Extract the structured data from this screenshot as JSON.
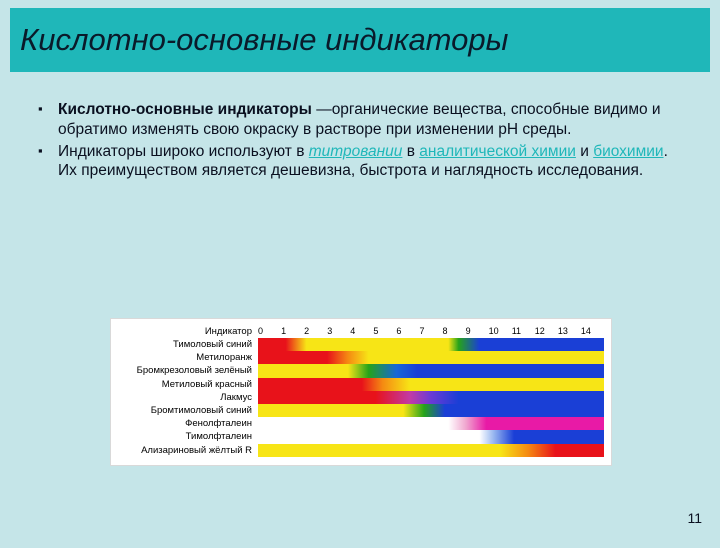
{
  "title": "Кислотно-основные индикаторы",
  "bullets": [
    {
      "bold_lead": "Кислотно-основные индикаторы ",
      "rest": "—органические вещества, способные видимо и обратимо изменять свою окраску в растворе при изменении pH среды."
    }
  ],
  "bullet2": {
    "t1": "Индикаторы широко используют в ",
    "link1": "титровании",
    "t2": " в ",
    "link2": "аналитической химии",
    "t3": " и ",
    "link3": "биохимии",
    "t4": ". Их преимуществом является дешевизна, быстрота и наглядность исследования."
  },
  "chart": {
    "header_label": "Индикатор",
    "axis": [
      "0",
      "1",
      "2",
      "3",
      "4",
      "5",
      "6",
      "7",
      "8",
      "9",
      "10",
      "11",
      "12",
      "13",
      "14"
    ],
    "rows": [
      {
        "label": "Тимоловый синий",
        "gradient": "linear-gradient(90deg,#e8121a 0%,#e8121a 8%,#f7e516 14%,#f7e516 55%,#26a31a 58%,#1a3fd6 64%,#1a3fd6 100%)"
      },
      {
        "label": "Метилоранж",
        "gradient": "linear-gradient(90deg,#e8121a 0%,#e8121a 20%,#f58a12 26%,#f7e516 32%,#f7e516 100%)"
      },
      {
        "label": "Бромкрезоловый зелёный",
        "gradient": "linear-gradient(90deg,#f7e516 0%,#f7e516 26%,#26a31a 32%,#1867d6 40%,#1a3fd6 46%,#1a3fd6 100%)"
      },
      {
        "label": "Метиловый красный",
        "gradient": "linear-gradient(90deg,#e8121a 0%,#e8121a 30%,#f58a12 36%,#f7e516 44%,#f7e516 100%)"
      },
      {
        "label": "Лакмус",
        "gradient": "linear-gradient(90deg,#e8121a 0%,#e8121a 34%,#c23aa6 44%,#6a3ad6 50%,#1a3fd6 58%,#1a3fd6 100%)"
      },
      {
        "label": "Бромтимоловый синий",
        "gradient": "linear-gradient(90deg,#f7e516 0%,#f7e516 42%,#26a31a 48%,#1a3fd6 54%,#1a3fd6 100%)"
      },
      {
        "label": "Фенолфталеин",
        "gradient": "linear-gradient(90deg,#ffffff 0%,#ffffff 55%,#f0a8d0 60%,#e81aa6 66%,#e81aa6 100%)"
      },
      {
        "label": "Тимолфталеин",
        "gradient": "linear-gradient(90deg,#ffffff 0%,#ffffff 64%,#9ab8f0 68%,#1a3fd6 74%,#1a3fd6 100%)"
      },
      {
        "label": "Ализариновый жёлтый R",
        "gradient": "linear-gradient(90deg,#f7e516 0%,#f7e516 70%,#f58a12 78%,#e8121a 86%,#e8121a 100%)"
      }
    ]
  },
  "page_number": "11"
}
